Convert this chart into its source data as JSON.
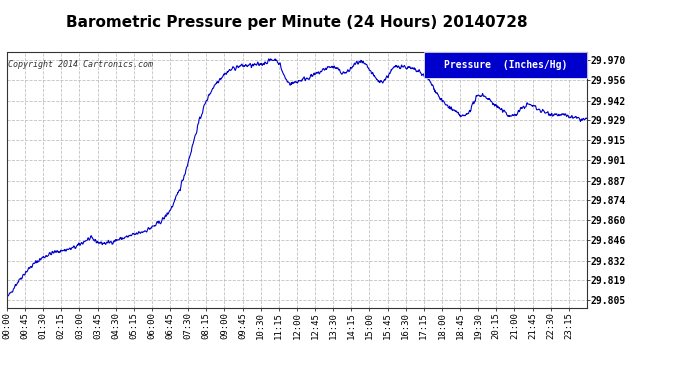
{
  "title": "Barometric Pressure per Minute (24 Hours) 20140728",
  "copyright": "Copyright 2014 Cartronics.com",
  "legend_label": "Pressure  (Inches/Hg)",
  "yticks": [
    29.805,
    29.819,
    29.832,
    29.846,
    29.86,
    29.874,
    29.887,
    29.901,
    29.915,
    29.929,
    29.942,
    29.956,
    29.97
  ],
  "ylim": [
    29.8,
    29.975
  ],
  "xtick_labels": [
    "00:00",
    "00:45",
    "01:30",
    "02:15",
    "03:00",
    "03:45",
    "04:30",
    "05:15",
    "06:00",
    "06:45",
    "07:30",
    "08:15",
    "09:00",
    "09:45",
    "10:30",
    "11:15",
    "12:00",
    "12:45",
    "13:30",
    "14:15",
    "15:00",
    "15:45",
    "16:30",
    "17:15",
    "18:00",
    "18:45",
    "19:30",
    "20:15",
    "21:00",
    "21:45",
    "22:30",
    "23:15"
  ],
  "line_color": "#0000cc",
  "background_color": "#ffffff",
  "grid_color": "#bbbbbb",
  "title_fontsize": 11,
  "legend_bg": "#0000cc",
  "legend_text_color": "#ffffff"
}
